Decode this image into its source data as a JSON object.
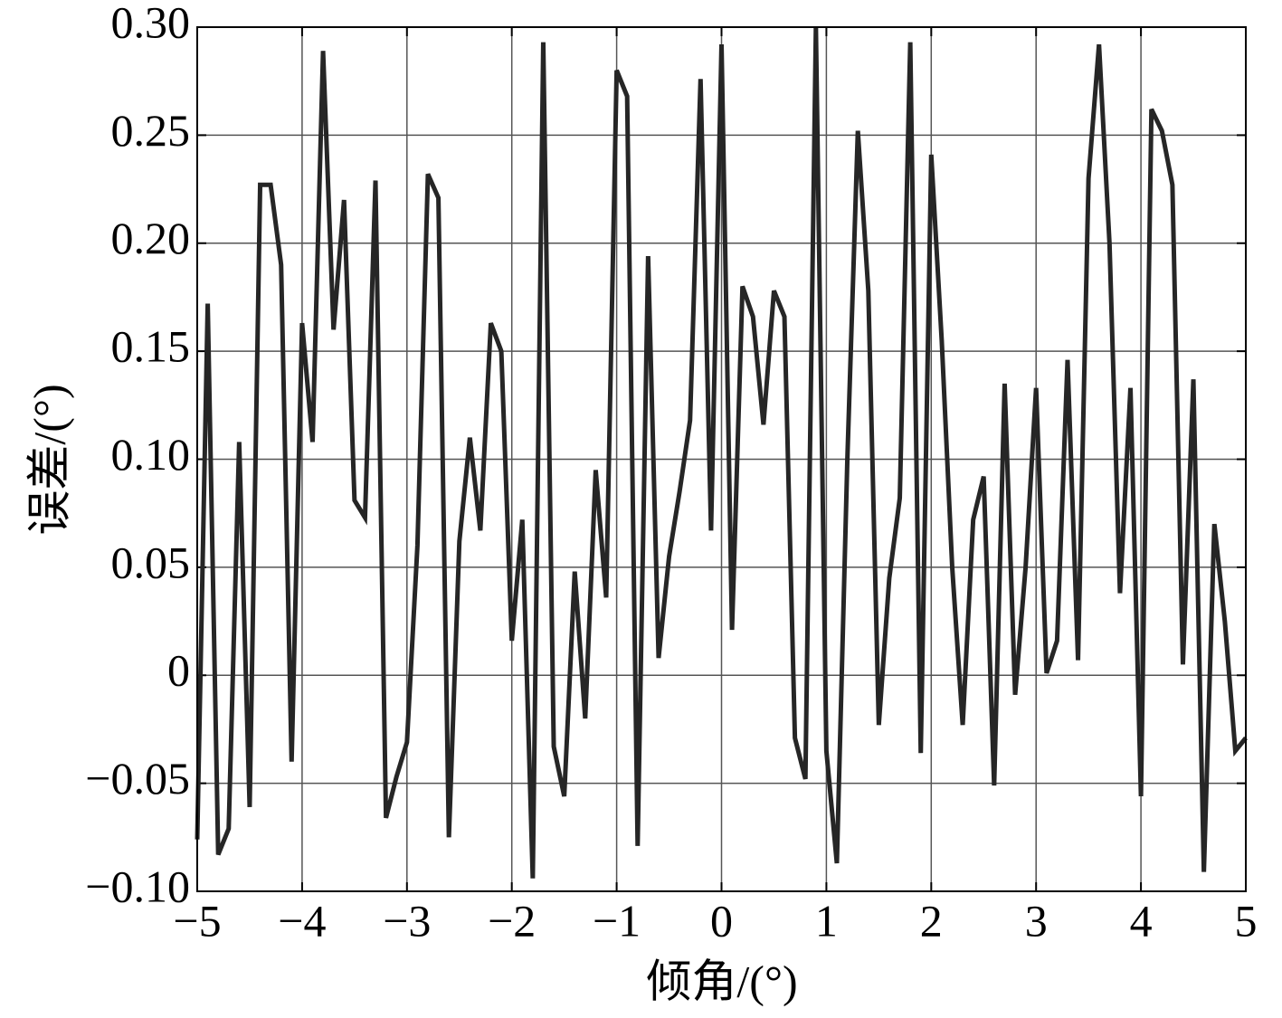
{
  "chart_data": {
    "type": "line",
    "xlabel": "倾角/(°)",
    "ylabel": "误差/(°)",
    "color": "#262626",
    "grid": true,
    "xlim": [
      -5,
      5
    ],
    "ylim": [
      -0.1,
      0.3
    ],
    "xticks": [
      {
        "value": -5,
        "label": "−5"
      },
      {
        "value": -4,
        "label": "−4"
      },
      {
        "value": -3,
        "label": "−3"
      },
      {
        "value": -2,
        "label": "−2"
      },
      {
        "value": -1,
        "label": "−1"
      },
      0,
      1,
      2,
      3,
      4,
      5
    ],
    "yticks": [
      {
        "value": -0.1,
        "label": "−0.10"
      },
      {
        "value": -0.05,
        "label": "−0.05"
      },
      0,
      {
        "value": 0.05,
        "label": "0.05"
      },
      {
        "value": 0.1,
        "label": "0.10"
      },
      {
        "value": 0.15,
        "label": "0.15"
      },
      {
        "value": 0.2,
        "label": "0.20"
      },
      {
        "value": 0.25,
        "label": "0.25"
      },
      {
        "value": 0.3,
        "label": "0.30"
      }
    ],
    "x": [
      -5.0,
      -4.9,
      -4.8,
      -4.7,
      -4.6,
      -4.5,
      -4.4,
      -4.3,
      -4.2,
      -4.1,
      -4.0,
      -3.9,
      -3.8,
      -3.7,
      -3.6,
      -3.5,
      -3.4,
      -3.3,
      -3.2,
      -3.1,
      -3.0,
      -2.9,
      -2.8,
      -2.7,
      -2.6,
      -2.5,
      -2.4,
      -2.3,
      -2.2,
      -2.1,
      -2.0,
      -1.9,
      -1.8,
      -1.7,
      -1.6,
      -1.5,
      -1.4,
      -1.3,
      -1.2,
      -1.1,
      -1.0,
      -0.9,
      -0.8,
      -0.7,
      -0.6,
      -0.5,
      -0.4,
      -0.3,
      -0.2,
      -0.1,
      0.0,
      0.1,
      0.2,
      0.3,
      0.4,
      0.5,
      0.6,
      0.7,
      0.8,
      0.9,
      1.0,
      1.1,
      1.2,
      1.3,
      1.4,
      1.5,
      1.6,
      1.7,
      1.8,
      1.9,
      2.0,
      2.1,
      2.2,
      2.3,
      2.4,
      2.5,
      2.6,
      2.7,
      2.8,
      2.9,
      3.0,
      3.1,
      3.2,
      3.3,
      3.4,
      3.5,
      3.6,
      3.7,
      3.8,
      3.9,
      4.0,
      4.1,
      4.2,
      4.3,
      4.4,
      4.5,
      4.6,
      4.7,
      4.8,
      4.9,
      5.0
    ],
    "values": [
      -0.076,
      0.172,
      -0.083,
      -0.071,
      0.108,
      -0.061,
      0.227,
      0.227,
      0.19,
      -0.04,
      0.163,
      0.108,
      0.289,
      0.16,
      0.22,
      0.081,
      0.073,
      0.229,
      -0.066,
      -0.047,
      -0.031,
      0.06,
      0.232,
      0.221,
      -0.075,
      0.062,
      0.11,
      0.067,
      0.163,
      0.15,
      0.016,
      0.072,
      -0.094,
      0.293,
      -0.033,
      -0.056,
      0.048,
      -0.02,
      0.095,
      0.036,
      0.28,
      0.268,
      -0.079,
      0.194,
      0.008,
      0.055,
      0.085,
      0.118,
      0.276,
      0.067,
      0.292,
      0.021,
      0.18,
      0.166,
      0.116,
      0.178,
      0.166,
      -0.029,
      -0.048,
      0.3,
      -0.035,
      -0.087,
      0.1,
      0.252,
      0.178,
      -0.023,
      0.045,
      0.082,
      0.293,
      -0.036,
      0.241,
      0.155,
      0.05,
      -0.023,
      0.072,
      0.092,
      -0.051,
      0.135,
      -0.009,
      0.05,
      0.133,
      0.001,
      0.016,
      0.146,
      0.007,
      0.23,
      0.292,
      0.2,
      0.038,
      0.133,
      -0.056,
      0.262,
      0.252,
      0.227,
      0.005,
      0.137,
      -0.091,
      0.07,
      0.025,
      -0.035,
      -0.029
    ]
  }
}
